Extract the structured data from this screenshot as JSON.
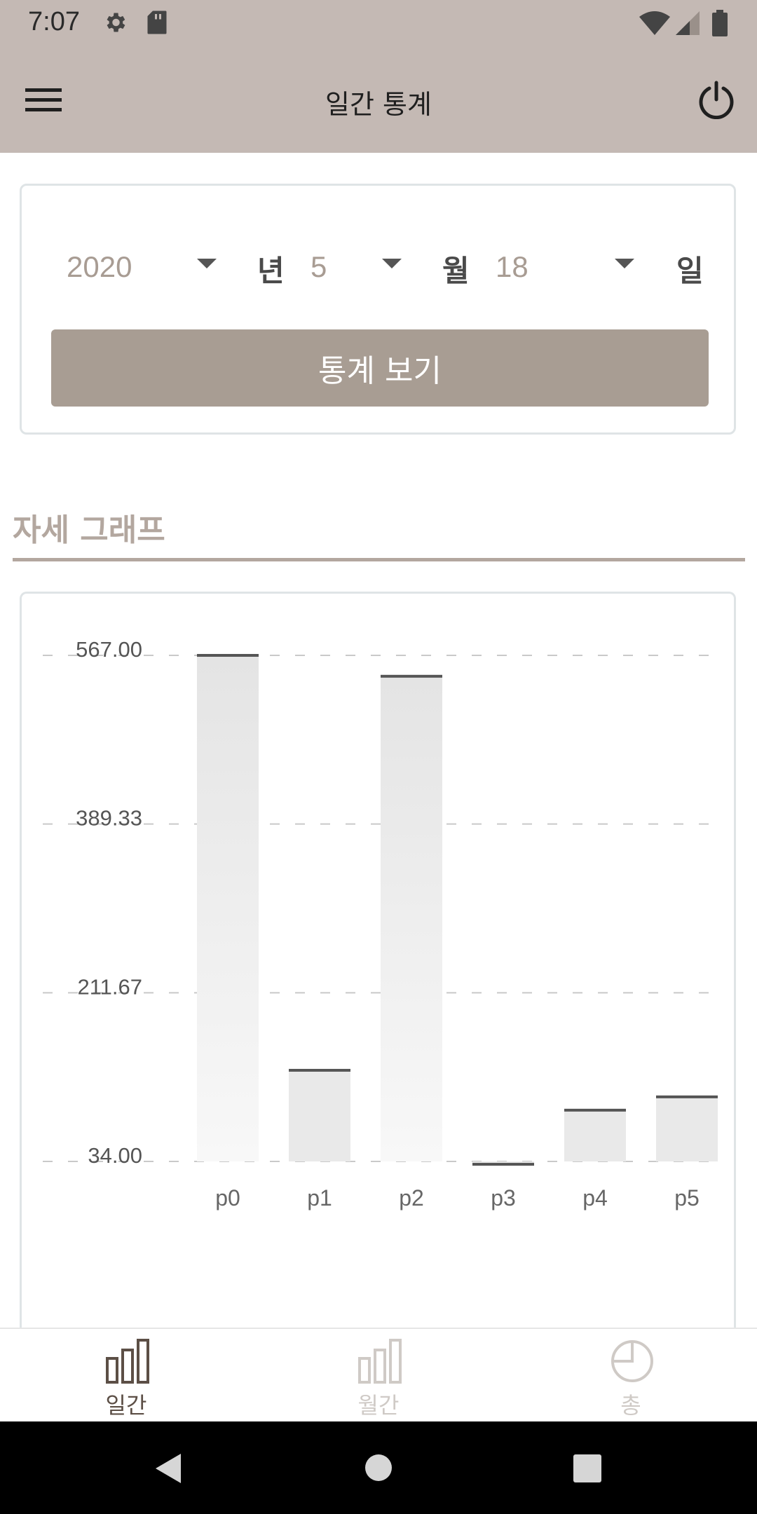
{
  "status_bar": {
    "time": "7:07",
    "left_icons": [
      "settings-icon",
      "sd-card-icon"
    ],
    "right_icons": [
      "wifi-icon",
      "signal-icon",
      "battery-icon"
    ]
  },
  "app_bar": {
    "title": "일간 통계",
    "menu_icon": "hamburger-menu-icon",
    "power_icon": "power-icon",
    "background": "#c4b9b4"
  },
  "date_picker": {
    "year": {
      "value": "2020",
      "unit": "년"
    },
    "month": {
      "value": "5",
      "unit": "월"
    },
    "day": {
      "value": "18",
      "unit": "일"
    },
    "view_button_label": "통계 보기",
    "button_color": "#a89d93"
  },
  "section": {
    "title": "자세 그래프",
    "accent": "#b3a79f"
  },
  "chart_data": {
    "type": "bar",
    "categories": [
      "p0",
      "p1",
      "p2",
      "p3",
      "p4",
      "p5"
    ],
    "values": [
      567,
      130,
      545,
      31,
      88,
      102
    ],
    "ylim": [
      34.0,
      567.0
    ],
    "y_ticks": [
      "567.00",
      "389.33",
      "211.67",
      "34.00"
    ],
    "grid": "dashed horizontal",
    "legend": "none",
    "bar_fill": "#e9e9e9",
    "bar_cap": "#555555"
  },
  "bottom_nav": {
    "items": [
      {
        "label": "일간",
        "icon": "bar-chart-icon",
        "active": true
      },
      {
        "label": "월간",
        "icon": "bar-chart-icon",
        "active": false
      },
      {
        "label": "총",
        "icon": "pie-chart-icon",
        "active": false
      }
    ],
    "active_color": "#5c4f46",
    "inactive_color": "#cfcac6"
  },
  "system_nav": {
    "icons": [
      "back-icon",
      "home-icon",
      "recents-icon"
    ]
  }
}
